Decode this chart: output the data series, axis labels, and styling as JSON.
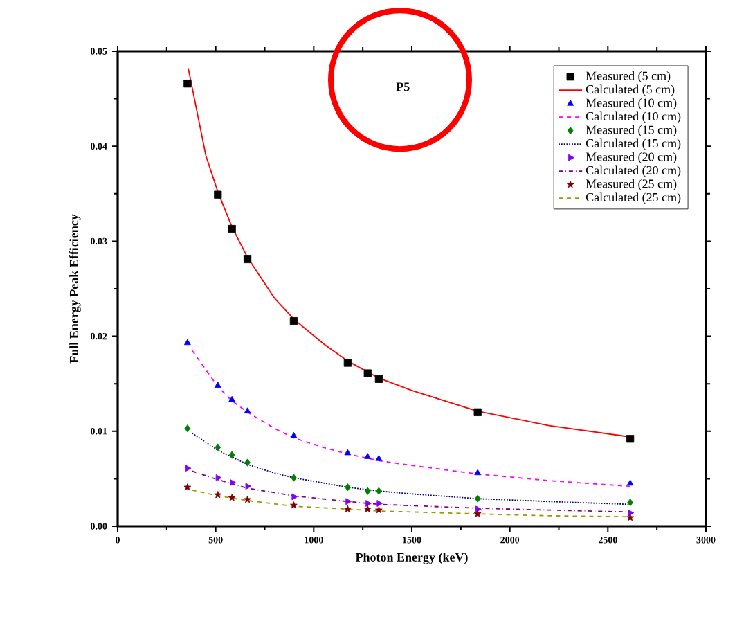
{
  "chart_data": {
    "type": "scatter",
    "xlabel": "Photon Energy (keV)",
    "ylabel": "Full Energy Peak Efficiency",
    "annotations": [
      "P5"
    ],
    "xlim": [
      0,
      3000
    ],
    "xticks": [
      0,
      500,
      1000,
      1500,
      2000,
      2500,
      3000
    ],
    "ylim": [
      0,
      0.05
    ],
    "yticks": [
      {
        "value": 0,
        "label": "0.00"
      },
      {
        "value": 0.01,
        "label": "0.01"
      },
      {
        "value": 0.02,
        "label": "0.02"
      },
      {
        "value": 0.03,
        "label": "0.03"
      },
      {
        "value": 0.04,
        "label": "0.04"
      },
      {
        "value": 0.05,
        "label": "0.05"
      }
    ],
    "grid": false,
    "legend": "top right",
    "x": [
      356,
      511,
      583,
      662,
      898,
      1173,
      1275,
      1332,
      1836,
      2614
    ],
    "series": [
      {
        "name": "Measured (5 cm)",
        "marker": "square",
        "color": "#000000",
        "values": [
          0.0466,
          0.0349,
          0.0313,
          0.0281,
          0.0216,
          0.0172,
          0.0161,
          0.0155,
          0.012,
          0.0092
        ]
      },
      {
        "name": "Calculated (5 cm)",
        "type": "line",
        "line_style": "solid",
        "color": "#ff0000",
        "x": [
          360,
          450,
          511,
          583,
          662,
          800,
          898,
          1050,
          1173,
          1332,
          1500,
          1836,
          2200,
          2614
        ],
        "values": [
          0.0482,
          0.039,
          0.0352,
          0.0315,
          0.0283,
          0.024,
          0.0218,
          0.0192,
          0.0174,
          0.0156,
          0.0143,
          0.0121,
          0.0106,
          0.0094
        ]
      },
      {
        "name": "Measured (10 cm)",
        "marker": "triangle",
        "color": "#0000ff",
        "values": [
          0.0193,
          0.0148,
          0.0133,
          0.0121,
          0.0095,
          0.0077,
          0.0073,
          0.0071,
          0.0056,
          0.0045
        ]
      },
      {
        "name": "Calculated (10 cm)",
        "type": "line",
        "line_style": "dashed",
        "color": "#ff00ff",
        "x": [
          380,
          511,
          583,
          662,
          800,
          898,
          1050,
          1173,
          1332,
          1500,
          1836,
          2200,
          2614
        ],
        "values": [
          0.0185,
          0.0147,
          0.0132,
          0.012,
          0.0103,
          0.0093,
          0.0083,
          0.0076,
          0.0069,
          0.0064,
          0.0055,
          0.0048,
          0.0042
        ]
      },
      {
        "name": "Measured (15 cm)",
        "marker": "diamond",
        "color": "#008000",
        "values": [
          0.0103,
          0.0083,
          0.0075,
          0.0067,
          0.0051,
          0.0041,
          0.0037,
          0.0037,
          0.0029,
          0.0025
        ]
      },
      {
        "name": "Calculated (15 cm)",
        "type": "line",
        "line_style": "dotted",
        "color": "#000080",
        "x": [
          380,
          511,
          662,
          800,
          898,
          1173,
          1332,
          1500,
          1836,
          2200,
          2614
        ],
        "values": [
          0.0098,
          0.008,
          0.0065,
          0.0056,
          0.0051,
          0.0041,
          0.0037,
          0.0034,
          0.0029,
          0.0026,
          0.0023
        ]
      },
      {
        "name": "Measured (20 cm)",
        "marker": "triangle-right",
        "color": "#8000ff",
        "values": [
          0.0061,
          0.0051,
          0.0046,
          0.0042,
          0.0031,
          0.0026,
          0.0024,
          0.0024,
          0.0018,
          0.0014
        ]
      },
      {
        "name": "Calculated (20 cm)",
        "type": "line",
        "line_style": "dashdot",
        "color": "#800080",
        "x": [
          380,
          511,
          662,
          898,
          1173,
          1332,
          1836,
          2200,
          2614
        ],
        "values": [
          0.0058,
          0.0049,
          0.004,
          0.0032,
          0.0026,
          0.0023,
          0.0019,
          0.0017,
          0.0015
        ]
      },
      {
        "name": "Measured (25 cm)",
        "marker": "star",
        "color": "#800000",
        "values": [
          0.0041,
          0.0033,
          0.003,
          0.0028,
          0.0022,
          0.0018,
          0.0018,
          0.0017,
          0.0013,
          0.0009
        ]
      },
      {
        "name": "Calculated (25 cm)",
        "type": "line",
        "line_style": "dashed",
        "color": "#999900",
        "x": [
          380,
          511,
          662,
          898,
          1173,
          1332,
          1836,
          2200,
          2614
        ],
        "values": [
          0.0038,
          0.0032,
          0.0027,
          0.0021,
          0.0018,
          0.0016,
          0.0013,
          0.0011,
          0.001
        ]
      }
    ]
  }
}
